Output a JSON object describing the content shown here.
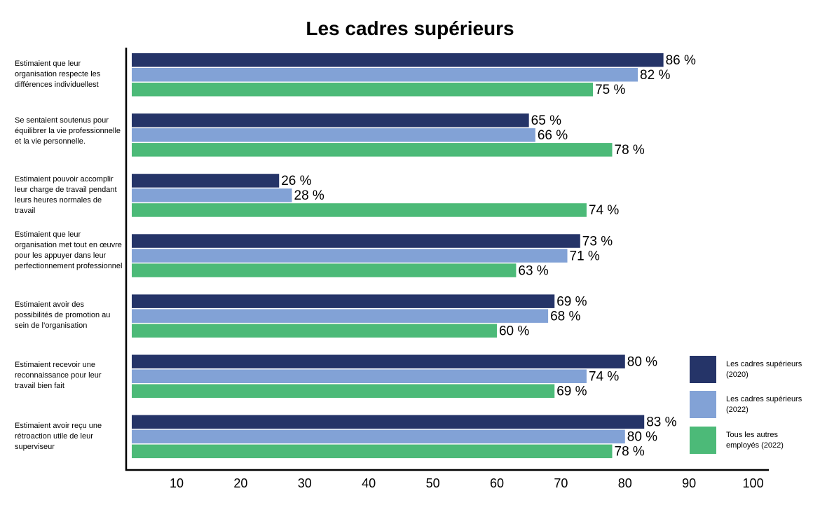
{
  "chart_data": {
    "type": "bar",
    "orientation": "horizontal",
    "title": "Les cadres supérieurs",
    "categories": [
      "Estimaient que leur organisation respecte les différences individuellest",
      "Se sentaient soutenus pour équilibrer la vie professionnelle et la vie personnelle.",
      "Estimaient pouvoir accomplir leur charge de travail pendant leurs heures normales de travail",
      "Estimaient que leur organisation met tout en œuvre pour les appuyer dans leur perfectionnement professionnel",
      "Estimaient avoir des possibilités de promotion au sein de l’organisation",
      "Estimaient recevoir une reconnaissance pour leur travail bien fait",
      "Estimaient avoir reçu une rétroaction utile de leur superviseur"
    ],
    "series": [
      {
        "name": "Les cadres supérieurs (2020)",
        "color": "#253468",
        "values": [
          86,
          65,
          26,
          73,
          69,
          80,
          83
        ]
      },
      {
        "name": "Les cadres supérieurs  (2022)",
        "color": "#82a2d6",
        "values": [
          82,
          66,
          28,
          71,
          68,
          74,
          80
        ]
      },
      {
        "name": "Tous les autres employés (2022)",
        "color": "#4cba78",
        "values": [
          75,
          78,
          74,
          63,
          60,
          69,
          78
        ]
      }
    ],
    "value_suffix": " %",
    "xticks": [
      10,
      20,
      30,
      40,
      50,
      60,
      70,
      80,
      90,
      100
    ],
    "xlim": [
      3,
      100
    ],
    "legend": "right",
    "grid": false
  }
}
